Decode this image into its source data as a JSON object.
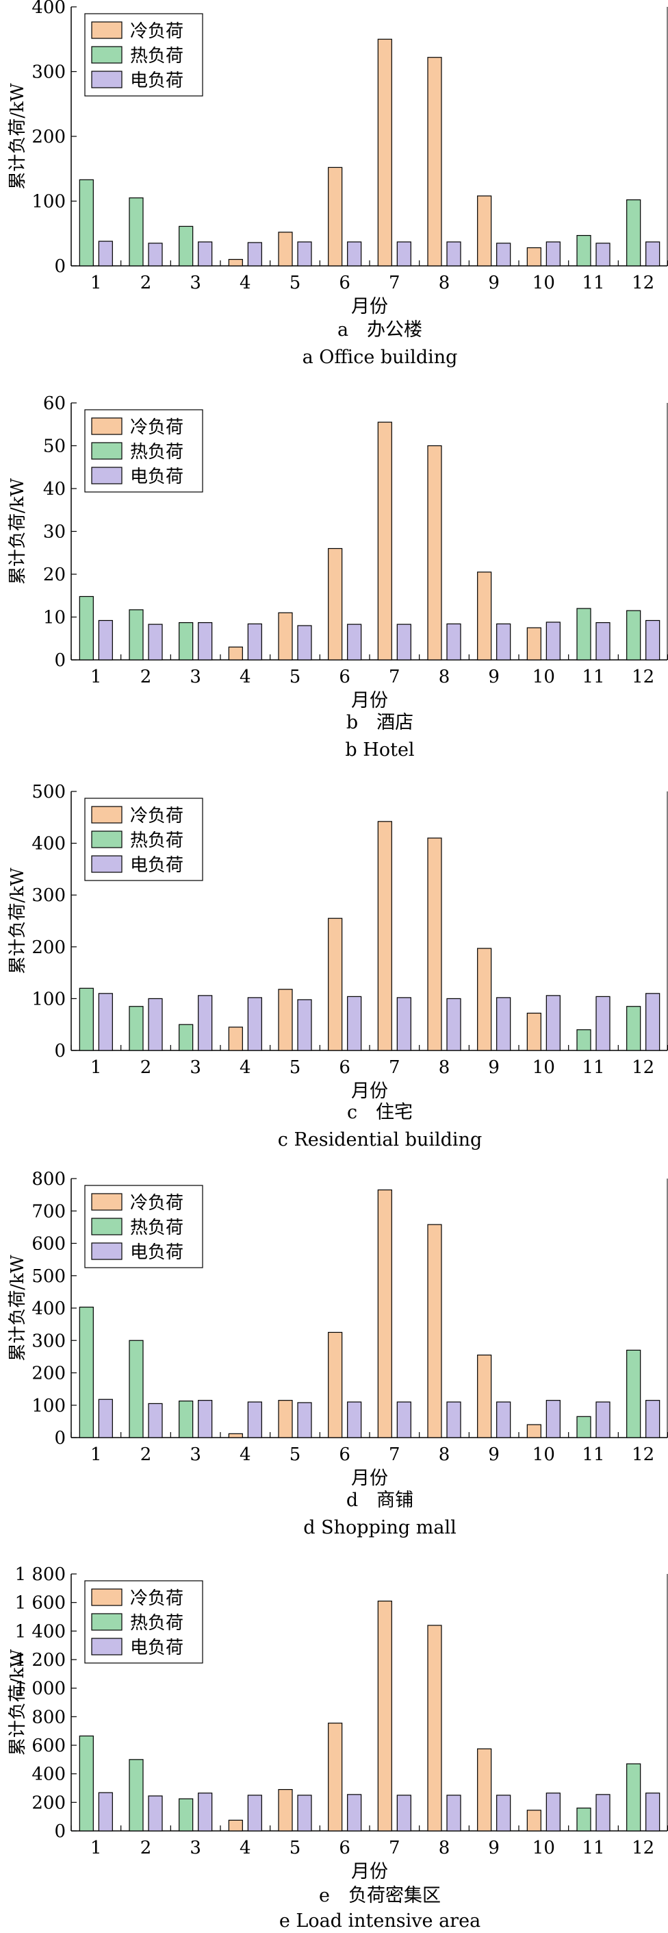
{
  "legend": [
    "冷负荷",
    "热负荷",
    "电负荷"
  ],
  "colors": {
    "cold": "#F8C9A0",
    "heat": "#9DD9AE",
    "elec": "#C6BDE8",
    "stroke": "#000000"
  },
  "ylabel": "累计负荷/kW",
  "xlabel": "月份",
  "chart_data": [
    {
      "type": "bar",
      "caption_cn": "a　办公楼",
      "caption_en": "a  Office building",
      "categories": [
        "1",
        "2",
        "3",
        "4",
        "5",
        "6",
        "7",
        "8",
        "9",
        "10",
        "11",
        "12"
      ],
      "ylim": [
        0,
        400
      ],
      "yticks": [
        0,
        100,
        200,
        300,
        400
      ],
      "ytick_labels": [
        "0",
        "100",
        "200",
        "300",
        "400"
      ],
      "series": [
        {
          "name": "冷负荷",
          "values": [
            0,
            0,
            0,
            10,
            52,
            152,
            350,
            322,
            108,
            28,
            0,
            0
          ]
        },
        {
          "name": "热负荷",
          "values": [
            133,
            105,
            61,
            0,
            0,
            0,
            0,
            0,
            0,
            0,
            47,
            102
          ]
        },
        {
          "name": "电负荷",
          "values": [
            38,
            35,
            37,
            36,
            37,
            37,
            37,
            37,
            35,
            37,
            35,
            37
          ]
        }
      ]
    },
    {
      "type": "bar",
      "caption_cn": "b　酒店",
      "caption_en": "b  Hotel",
      "categories": [
        "1",
        "2",
        "3",
        "4",
        "5",
        "6",
        "7",
        "8",
        "9",
        "10",
        "11",
        "12"
      ],
      "ylim": [
        0,
        60
      ],
      "yticks": [
        0,
        10,
        20,
        30,
        40,
        50,
        60
      ],
      "ytick_labels": [
        "0",
        "10",
        "20",
        "30",
        "40",
        "50",
        "60"
      ],
      "series": [
        {
          "name": "冷负荷",
          "values": [
            0,
            0,
            0,
            3,
            11,
            26,
            55.5,
            50,
            20.5,
            7.5,
            0,
            0
          ]
        },
        {
          "name": "热负荷",
          "values": [
            14.8,
            11.7,
            8.7,
            0,
            0,
            0,
            0,
            0,
            0,
            0,
            12,
            11.5
          ]
        },
        {
          "name": "电负荷",
          "values": [
            9.2,
            8.3,
            8.7,
            8.4,
            8,
            8.3,
            8.3,
            8.4,
            8.4,
            8.8,
            8.7,
            9.2
          ]
        }
      ]
    },
    {
      "type": "bar",
      "caption_cn": "c　住宅",
      "caption_en": "c  Residential building",
      "categories": [
        "1",
        "2",
        "3",
        "4",
        "5",
        "6",
        "7",
        "8",
        "9",
        "10",
        "11",
        "12"
      ],
      "ylim": [
        0,
        500
      ],
      "yticks": [
        0,
        100,
        200,
        300,
        400,
        500
      ],
      "ytick_labels": [
        "0",
        "100",
        "200",
        "300",
        "400",
        "500"
      ],
      "series": [
        {
          "name": "冷负荷",
          "values": [
            0,
            0,
            0,
            45,
            118,
            255,
            442,
            410,
            197,
            72,
            0,
            0
          ]
        },
        {
          "name": "热负荷",
          "values": [
            120,
            85,
            50,
            0,
            0,
            0,
            0,
            0,
            0,
            0,
            40,
            85
          ]
        },
        {
          "name": "电负荷",
          "values": [
            110,
            100,
            106,
            102,
            98,
            104,
            102,
            100,
            102,
            106,
            104,
            110
          ]
        }
      ]
    },
    {
      "type": "bar",
      "caption_cn": "d　商铺",
      "caption_en": "d  Shopping mall",
      "categories": [
        "1",
        "2",
        "3",
        "4",
        "5",
        "6",
        "7",
        "8",
        "9",
        "10",
        "11",
        "12"
      ],
      "ylim": [
        0,
        800
      ],
      "yticks": [
        0,
        100,
        200,
        300,
        400,
        500,
        600,
        700,
        800
      ],
      "ytick_labels": [
        "0",
        "100",
        "200",
        "300",
        "400",
        "500",
        "600",
        "700",
        "800"
      ],
      "series": [
        {
          "name": "冷负荷",
          "values": [
            0,
            0,
            0,
            12,
            115,
            325,
            765,
            658,
            255,
            40,
            0,
            0
          ]
        },
        {
          "name": "热负荷",
          "values": [
            403,
            300,
            113,
            0,
            0,
            0,
            0,
            0,
            0,
            0,
            65,
            270
          ]
        },
        {
          "name": "电负荷",
          "values": [
            118,
            105,
            115,
            110,
            108,
            110,
            110,
            110,
            110,
            115,
            110,
            115
          ]
        }
      ]
    },
    {
      "type": "bar",
      "caption_cn": "e　负荷密集区",
      "caption_en": "e  Load intensive area",
      "categories": [
        "1",
        "2",
        "3",
        "4",
        "5",
        "6",
        "7",
        "8",
        "9",
        "10",
        "11",
        "12"
      ],
      "ylim": [
        0,
        1800
      ],
      "yticks": [
        0,
        200,
        400,
        600,
        800,
        1000,
        1200,
        1400,
        1600,
        1800
      ],
      "ytick_labels": [
        "0",
        "200",
        "400",
        "600",
        "800",
        "1 000",
        "1 200",
        "1 400",
        "1 600",
        "1 800"
      ],
      "series": [
        {
          "name": "冷负荷",
          "values": [
            0,
            0,
            0,
            75,
            290,
            755,
            1610,
            1440,
            575,
            145,
            0,
            0
          ]
        },
        {
          "name": "热负荷",
          "values": [
            665,
            500,
            225,
            0,
            0,
            0,
            0,
            0,
            0,
            0,
            160,
            470
          ]
        },
        {
          "name": "电负荷",
          "values": [
            268,
            245,
            265,
            250,
            250,
            255,
            250,
            250,
            250,
            265,
            255,
            265
          ]
        }
      ]
    }
  ]
}
